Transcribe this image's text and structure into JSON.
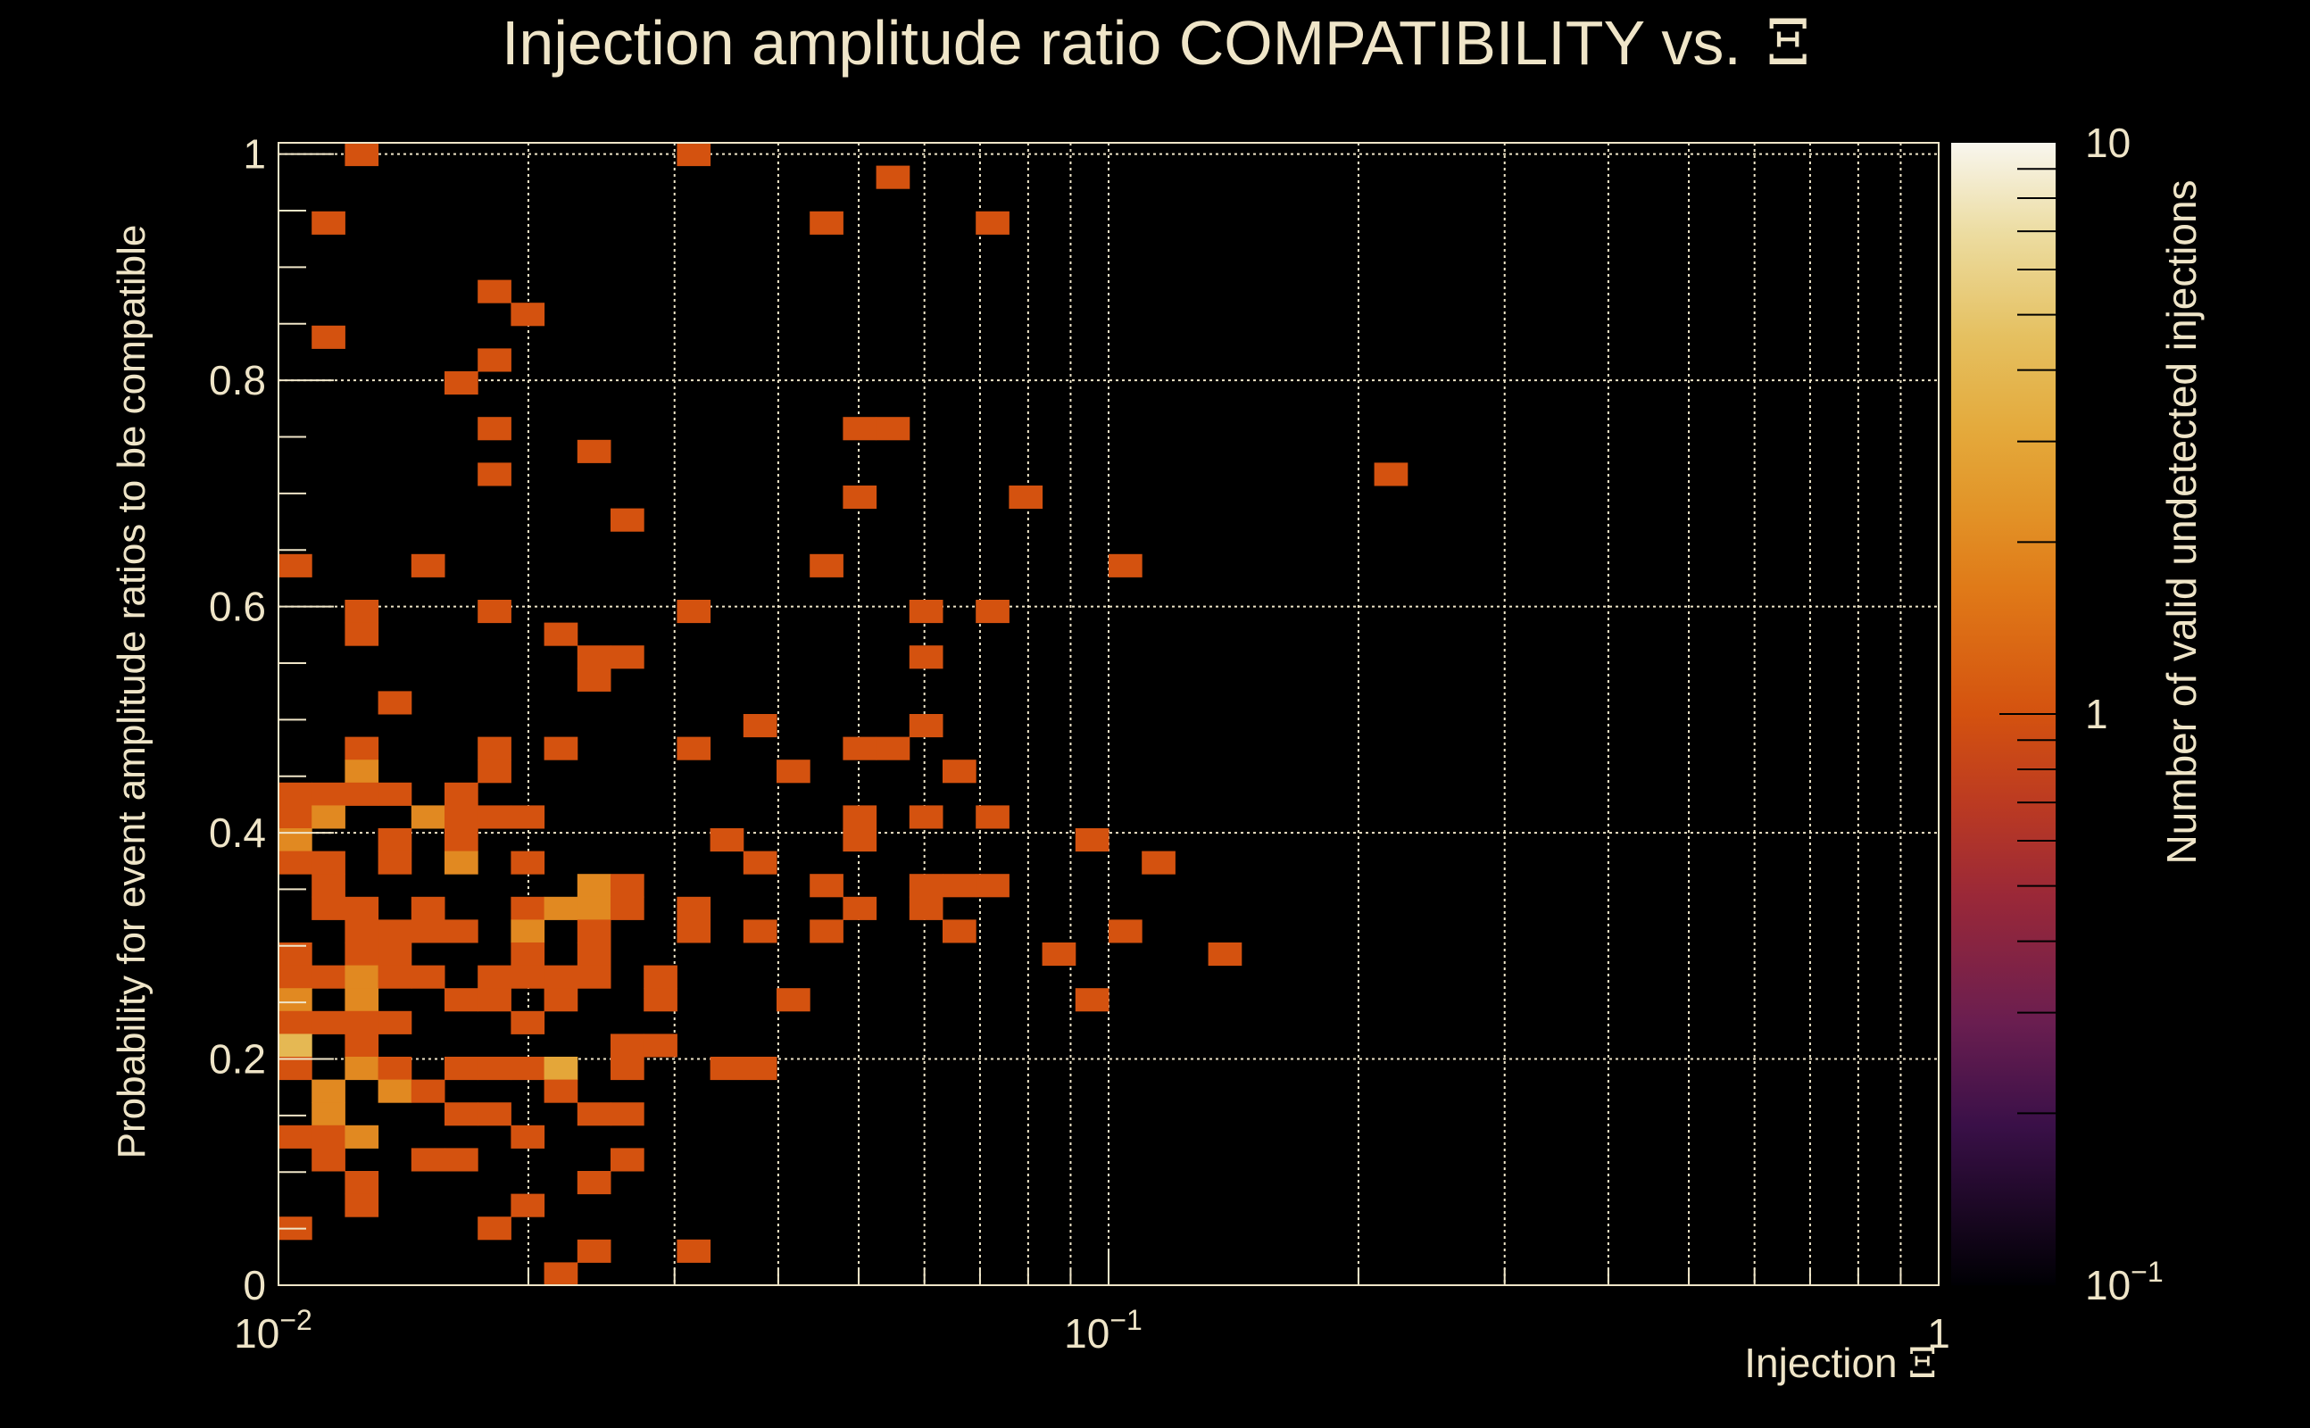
{
  "chart_data": {
    "type": "heatmap",
    "title": "Injection amplitude ratio COMPATIBILITY vs.",
    "title_symbol": "Ξ",
    "xlabel": "Injection",
    "xlabel_symbol": "Ξ",
    "ylabel": "Probability for event amplitude ratios to be compatible",
    "zlabel": "Number of valid undetected injections",
    "xscale": "log",
    "xlim": [
      0.01,
      1
    ],
    "ylim": [
      0,
      1.01
    ],
    "zscale": "log",
    "zlim": [
      0.1,
      10
    ],
    "grid": true,
    "x_bins": {
      "min": 0.01,
      "max": 1,
      "count": 50,
      "log": true
    },
    "y_bins": {
      "min": 0,
      "max": 1.01,
      "count": 50,
      "log": false
    },
    "x_ticks": [
      {
        "value": 0.01,
        "base": "10",
        "exp": "−2"
      },
      {
        "value": 0.1,
        "base": "10",
        "exp": "−1"
      },
      {
        "value": 1,
        "base": "1",
        "exp": ""
      }
    ],
    "y_ticks": [
      {
        "value": 0,
        "label": "0"
      },
      {
        "value": 0.2,
        "label": "0.2"
      },
      {
        "value": 0.4,
        "label": "0.4"
      },
      {
        "value": 0.6,
        "label": "0.6"
      },
      {
        "value": 0.8,
        "label": "0.8"
      },
      {
        "value": 1,
        "label": "1"
      }
    ],
    "z_ticks": [
      {
        "value": 0.1,
        "base": "10",
        "exp": "−1"
      },
      {
        "value": 1,
        "base": "1",
        "exp": ""
      },
      {
        "value": 10,
        "base": "10",
        "exp": ""
      }
    ],
    "cells_format": [
      "x_bin_index",
      "y_bin_index",
      "count"
    ],
    "cells": [
      [
        2,
        49,
        1
      ],
      [
        12,
        49,
        1
      ],
      [
        18,
        48,
        1
      ],
      [
        1,
        46,
        1
      ],
      [
        16,
        46,
        1
      ],
      [
        21,
        46,
        1
      ],
      [
        6,
        43,
        1
      ],
      [
        7,
        42,
        1
      ],
      [
        1,
        41,
        1
      ],
      [
        6,
        40,
        1
      ],
      [
        5,
        39,
        1
      ],
      [
        6,
        37,
        1
      ],
      [
        17,
        37,
        1
      ],
      [
        18,
        37,
        1
      ],
      [
        9,
        36,
        1
      ],
      [
        6,
        35,
        1
      ],
      [
        33,
        35,
        1
      ],
      [
        17,
        34,
        1
      ],
      [
        22,
        34,
        1
      ],
      [
        10,
        33,
        1
      ],
      [
        0,
        31,
        1
      ],
      [
        4,
        31,
        1
      ],
      [
        16,
        31,
        1
      ],
      [
        25,
        31,
        1
      ],
      [
        2,
        29,
        1
      ],
      [
        6,
        29,
        1
      ],
      [
        12,
        29,
        1
      ],
      [
        19,
        29,
        1
      ],
      [
        21,
        29,
        1
      ],
      [
        2,
        28,
        1
      ],
      [
        8,
        28,
        1
      ],
      [
        9,
        27,
        1
      ],
      [
        10,
        27,
        1
      ],
      [
        19,
        27,
        1
      ],
      [
        9,
        26,
        1
      ],
      [
        3,
        25,
        1
      ],
      [
        14,
        24,
        1
      ],
      [
        19,
        24,
        1
      ],
      [
        2,
        23,
        1
      ],
      [
        6,
        23,
        1
      ],
      [
        8,
        23,
        1
      ],
      [
        12,
        23,
        1
      ],
      [
        17,
        23,
        1
      ],
      [
        18,
        23,
        1
      ],
      [
        2,
        22,
        2
      ],
      [
        6,
        22,
        1
      ],
      [
        15,
        22,
        1
      ],
      [
        20,
        22,
        1
      ],
      [
        0,
        21,
        1
      ],
      [
        1,
        21,
        1
      ],
      [
        2,
        21,
        1
      ],
      [
        3,
        21,
        1
      ],
      [
        5,
        21,
        1
      ],
      [
        0,
        20,
        1
      ],
      [
        1,
        20,
        2
      ],
      [
        4,
        20,
        2
      ],
      [
        5,
        20,
        1
      ],
      [
        6,
        20,
        1
      ],
      [
        7,
        20,
        1
      ],
      [
        17,
        20,
        1
      ],
      [
        19,
        20,
        1
      ],
      [
        21,
        20,
        1
      ],
      [
        0,
        19,
        2
      ],
      [
        3,
        19,
        1
      ],
      [
        5,
        19,
        1
      ],
      [
        13,
        19,
        1
      ],
      [
        17,
        19,
        1
      ],
      [
        24,
        19,
        1
      ],
      [
        0,
        18,
        1
      ],
      [
        1,
        18,
        1
      ],
      [
        3,
        18,
        1
      ],
      [
        5,
        18,
        2
      ],
      [
        7,
        18,
        1
      ],
      [
        14,
        18,
        1
      ],
      [
        26,
        18,
        1
      ],
      [
        1,
        17,
        1
      ],
      [
        9,
        17,
        2
      ],
      [
        10,
        17,
        1
      ],
      [
        16,
        17,
        1
      ],
      [
        19,
        17,
        1
      ],
      [
        20,
        17,
        1
      ],
      [
        21,
        17,
        1
      ],
      [
        1,
        16,
        1
      ],
      [
        2,
        16,
        1
      ],
      [
        4,
        16,
        1
      ],
      [
        7,
        16,
        1
      ],
      [
        8,
        16,
        2
      ],
      [
        9,
        16,
        2
      ],
      [
        10,
        16,
        1
      ],
      [
        12,
        16,
        1
      ],
      [
        17,
        16,
        1
      ],
      [
        19,
        16,
        1
      ],
      [
        2,
        15,
        1
      ],
      [
        3,
        15,
        1
      ],
      [
        4,
        15,
        1
      ],
      [
        5,
        15,
        1
      ],
      [
        7,
        15,
        2
      ],
      [
        9,
        15,
        1
      ],
      [
        12,
        15,
        1
      ],
      [
        14,
        15,
        1
      ],
      [
        16,
        15,
        1
      ],
      [
        20,
        15,
        1
      ],
      [
        25,
        15,
        1
      ],
      [
        0,
        14,
        1
      ],
      [
        2,
        14,
        1
      ],
      [
        3,
        14,
        1
      ],
      [
        7,
        14,
        1
      ],
      [
        9,
        14,
        1
      ],
      [
        23,
        14,
        1
      ],
      [
        28,
        14,
        1
      ],
      [
        0,
        13,
        1
      ],
      [
        1,
        13,
        1
      ],
      [
        2,
        13,
        2
      ],
      [
        3,
        13,
        1
      ],
      [
        4,
        13,
        1
      ],
      [
        6,
        13,
        1
      ],
      [
        7,
        13,
        1
      ],
      [
        8,
        13,
        1
      ],
      [
        9,
        13,
        1
      ],
      [
        11,
        13,
        1
      ],
      [
        0,
        12,
        2
      ],
      [
        2,
        12,
        2
      ],
      [
        5,
        12,
        1
      ],
      [
        6,
        12,
        1
      ],
      [
        8,
        12,
        1
      ],
      [
        11,
        12,
        1
      ],
      [
        15,
        12,
        1
      ],
      [
        24,
        12,
        1
      ],
      [
        0,
        11,
        1
      ],
      [
        1,
        11,
        1
      ],
      [
        2,
        11,
        1
      ],
      [
        3,
        11,
        1
      ],
      [
        7,
        11,
        1
      ],
      [
        0,
        10,
        4
      ],
      [
        2,
        10,
        1
      ],
      [
        10,
        10,
        1
      ],
      [
        11,
        10,
        1
      ],
      [
        0,
        9,
        1
      ],
      [
        2,
        9,
        2
      ],
      [
        3,
        9,
        1
      ],
      [
        5,
        9,
        1
      ],
      [
        6,
        9,
        1
      ],
      [
        7,
        9,
        1
      ],
      [
        8,
        9,
        3
      ],
      [
        10,
        9,
        1
      ],
      [
        13,
        9,
        1
      ],
      [
        14,
        9,
        1
      ],
      [
        1,
        8,
        2
      ],
      [
        3,
        8,
        2
      ],
      [
        4,
        8,
        1
      ],
      [
        8,
        8,
        1
      ],
      [
        1,
        7,
        2
      ],
      [
        5,
        7,
        1
      ],
      [
        6,
        7,
        1
      ],
      [
        9,
        7,
        1
      ],
      [
        10,
        7,
        1
      ],
      [
        0,
        6,
        1
      ],
      [
        1,
        6,
        1
      ],
      [
        2,
        6,
        2
      ],
      [
        7,
        6,
        1
      ],
      [
        1,
        5,
        1
      ],
      [
        4,
        5,
        1
      ],
      [
        5,
        5,
        1
      ],
      [
        10,
        5,
        1
      ],
      [
        2,
        4,
        1
      ],
      [
        9,
        4,
        1
      ],
      [
        2,
        3,
        1
      ],
      [
        7,
        3,
        1
      ],
      [
        0,
        2,
        1
      ],
      [
        6,
        2,
        1
      ],
      [
        9,
        1,
        1
      ],
      [
        12,
        1,
        1
      ],
      [
        8,
        0,
        1
      ]
    ]
  }
}
